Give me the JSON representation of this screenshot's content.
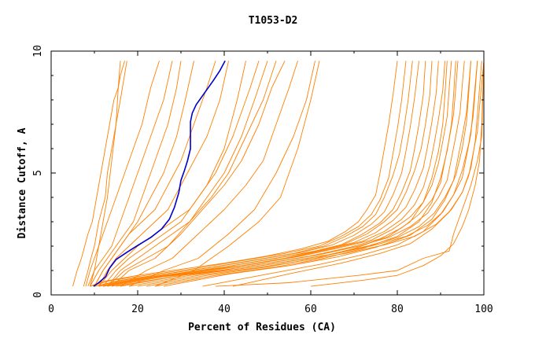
{
  "chart_data": {
    "type": "line",
    "title": "T1053-D2",
    "xlabel": "Percent of Residues (CA)",
    "ylabel": "Distance Cutoff, A",
    "xlim": [
      0,
      100
    ],
    "ylim": [
      0,
      10
    ],
    "x_ticks": [
      0,
      20,
      40,
      60,
      80,
      100
    ],
    "y_ticks": [
      0,
      5,
      10
    ],
    "grid": false,
    "colors": {
      "highlight": "#0000cc",
      "others": "#ff8000"
    },
    "series": [
      {
        "highlight": true,
        "x": [
          9.8,
          11.0,
          12.6,
          13.5,
          15.0,
          17.5,
          20.2,
          23.0,
          25.5,
          27.3,
          28.5,
          29.5,
          30.0,
          30.8,
          31.5,
          32.2,
          32.2,
          32.6,
          33.5,
          35.5,
          37.5,
          39.0,
          40.2
        ],
        "y": [
          0.35,
          0.5,
          0.75,
          1.1,
          1.45,
          1.75,
          2.05,
          2.35,
          2.7,
          3.1,
          3.6,
          4.2,
          4.7,
          5.1,
          5.5,
          6.0,
          7.1,
          7.45,
          7.8,
          8.3,
          8.8,
          9.2,
          9.6
        ]
      },
      {
        "x": [
          5.0,
          6.0,
          7.0,
          8.5,
          9.5,
          10.5,
          11.5,
          12.5,
          13.5,
          14.5,
          15.5,
          16.0,
          17.0
        ],
        "y": [
          0.35,
          1.0,
          1.5,
          2.5,
          3.0,
          4.0,
          5.0,
          6.0,
          7.0,
          8.0,
          8.5,
          9.0,
          9.6
        ]
      },
      {
        "x": [
          7.5,
          8.5,
          9.2,
          10.0,
          11.0,
          12.5,
          13.0,
          14.0,
          15.0,
          16.0,
          17.5
        ],
        "y": [
          0.35,
          1.0,
          1.5,
          2.0,
          3.0,
          4.0,
          5.0,
          6.0,
          7.0,
          8.0,
          9.6
        ]
      },
      {
        "x": [
          8.0,
          9.0,
          10.0,
          11.0,
          12.0,
          13.0,
          14.0,
          15.0,
          15.5,
          16.0
        ],
        "y": [
          0.35,
          1.0,
          1.5,
          2.0,
          3.0,
          4.0,
          5.5,
          7.0,
          8.5,
          9.6
        ]
      },
      {
        "x": [
          9.0,
          10.0,
          11.0,
          13.0,
          15.0,
          17.0,
          19.0,
          21.0,
          23.0,
          25.0
        ],
        "y": [
          0.35,
          1.0,
          2.0,
          3.0,
          4.0,
          5.0,
          6.0,
          7.0,
          8.5,
          9.6
        ]
      },
      {
        "x": [
          8.5,
          10.0,
          12.0,
          14.0,
          16.0,
          18.0,
          20.0,
          22.0,
          24.0,
          26.0,
          28.0
        ],
        "y": [
          0.35,
          1.0,
          1.5,
          2.0,
          3.0,
          4.0,
          5.0,
          6.0,
          7.0,
          8.0,
          9.6
        ]
      },
      {
        "x": [
          9.0,
          11.0,
          13.0,
          15.0,
          17.0,
          19.0,
          21.0,
          23.0,
          25.0,
          27.0,
          29.0,
          30.0
        ],
        "y": [
          0.35,
          1.0,
          1.5,
          2.0,
          2.5,
          3.0,
          4.0,
          5.0,
          6.0,
          7.0,
          8.5,
          9.6
        ]
      },
      {
        "x": [
          10.0,
          12.0,
          14.0,
          16.0,
          18.0,
          20.0,
          23.0,
          26.0,
          29.0,
          31.0,
          33.0
        ],
        "y": [
          0.35,
          1.0,
          1.5,
          2.0,
          2.5,
          3.0,
          4.0,
          5.0,
          6.5,
          8.0,
          9.6
        ]
      },
      {
        "x": [
          10.0,
          12.0,
          14.0,
          16.0,
          18.0,
          21.0,
          24.0,
          27.0,
          30.0,
          33.0,
          36.0,
          38.0
        ],
        "y": [
          0.35,
          1.0,
          1.5,
          2.0,
          2.5,
          3.0,
          3.5,
          4.5,
          5.5,
          7.0,
          8.5,
          9.6
        ]
      },
      {
        "x": [
          11.0,
          13.0,
          15.0,
          18.0,
          21.0,
          24.0,
          27.0,
          30.0,
          33.0,
          36.0,
          39.0,
          41.0
        ],
        "y": [
          0.35,
          1.0,
          1.5,
          2.0,
          2.5,
          3.0,
          3.5,
          4.5,
          5.5,
          6.5,
          8.0,
          9.6
        ]
      },
      {
        "x": [
          11.0,
          14.0,
          17.0,
          20.0,
          24.0,
          28.0,
          32.0,
          36.0,
          40.0,
          43.0,
          45.0
        ],
        "y": [
          0.35,
          1.0,
          1.5,
          2.0,
          2.5,
          3.0,
          3.5,
          4.5,
          6.0,
          8.0,
          9.6
        ]
      },
      {
        "x": [
          12.0,
          15.0,
          18.0,
          22.0,
          26.0,
          30.0,
          34.0,
          38.0,
          42.0,
          46.0,
          48.0
        ],
        "y": [
          0.35,
          1.0,
          1.5,
          2.0,
          2.5,
          3.0,
          4.0,
          5.0,
          6.5,
          8.5,
          9.6
        ]
      },
      {
        "x": [
          13.0,
          16.0,
          20.0,
          24.0,
          28.0,
          32.0,
          36.0,
          40.0,
          44.0,
          47.0,
          50.0
        ],
        "y": [
          0.35,
          1.0,
          1.5,
          2.0,
          2.5,
          3.0,
          4.0,
          5.0,
          6.5,
          8.0,
          9.6
        ]
      },
      {
        "x": [
          13.0,
          17.0,
          22.0,
          27.0,
          32.0,
          37.0,
          41.0,
          45.0,
          49.0,
          52.0
        ],
        "y": [
          0.35,
          1.0,
          1.5,
          2.0,
          3.0,
          4.0,
          5.0,
          6.5,
          8.0,
          9.6
        ]
      },
      {
        "x": [
          14.0,
          18.0,
          24.0,
          30.0,
          35.0,
          40.0,
          44.0,
          48.0,
          51.0,
          54.0
        ],
        "y": [
          0.35,
          1.0,
          1.5,
          2.5,
          3.5,
          4.5,
          5.5,
          7.0,
          8.5,
          9.6
        ]
      },
      {
        "x": [
          16.0,
          22.0,
          28.0,
          34.0,
          40.0,
          45.0,
          49.0,
          52.0,
          55.0,
          57.0
        ],
        "y": [
          0.35,
          1.0,
          1.5,
          2.5,
          3.5,
          4.5,
          5.5,
          7.0,
          8.5,
          9.6
        ]
      },
      {
        "x": [
          18.0,
          26.0,
          34.0,
          41.0,
          47.0,
          52.0,
          56.0,
          59.0,
          61.0
        ],
        "y": [
          0.35,
          1.0,
          1.5,
          2.5,
          3.5,
          5.0,
          6.5,
          8.0,
          9.6
        ]
      },
      {
        "x": [
          24.0,
          33.0,
          41.0,
          48.0,
          53.0,
          57.0,
          60.0,
          62.0
        ],
        "y": [
          0.35,
          1.0,
          2.0,
          3.0,
          4.0,
          6.0,
          8.0,
          9.6
        ]
      },
      {
        "x": [
          9.0,
          12.0,
          20.0,
          30.0,
          40.0,
          50.0,
          58.0,
          64.0,
          68.0,
          71.0,
          73.0,
          75.0,
          76.0,
          77.0,
          78.0,
          79.0,
          80.0
        ],
        "y": [
          0.35,
          0.55,
          0.8,
          1.05,
          1.3,
          1.6,
          1.9,
          2.2,
          2.6,
          3.0,
          3.5,
          4.1,
          5.0,
          6.0,
          7.0,
          8.2,
          9.6
        ]
      },
      {
        "x": [
          9.0,
          14.0,
          24.0,
          34.0,
          44.0,
          54.0,
          62.0,
          67.0,
          71.0,
          74.0,
          76.0,
          78.0,
          79.0,
          80.0,
          81.0,
          82.0
        ],
        "y": [
          0.35,
          0.6,
          0.85,
          1.1,
          1.4,
          1.7,
          2.0,
          2.4,
          2.8,
          3.3,
          3.9,
          4.8,
          5.8,
          6.8,
          8.0,
          9.6
        ]
      },
      {
        "x": [
          10.0,
          16.0,
          26.0,
          36.0,
          46.0,
          56.0,
          63.0,
          68.0,
          72.0,
          75.0,
          77.0,
          79.0,
          80.5,
          81.5,
          82.5,
          83.5
        ],
        "y": [
          0.35,
          0.6,
          0.85,
          1.1,
          1.4,
          1.7,
          2.0,
          2.4,
          2.8,
          3.3,
          4.0,
          4.9,
          5.8,
          6.8,
          8.0,
          9.6
        ]
      },
      {
        "x": [
          10.0,
          18.0,
          28.0,
          38.0,
          48.0,
          58.0,
          65.0,
          70.0,
          74.0,
          77.0,
          79.0,
          81.0,
          82.0,
          83.0,
          84.0,
          85.0
        ],
        "y": [
          0.35,
          0.65,
          0.9,
          1.15,
          1.45,
          1.75,
          2.05,
          2.45,
          2.9,
          3.4,
          4.1,
          5.0,
          5.9,
          6.9,
          8.1,
          9.6
        ]
      },
      {
        "x": [
          11.0,
          19.0,
          30.0,
          40.0,
          50.0,
          60.0,
          67.0,
          72.0,
          76.0,
          79.0,
          81.0,
          83.0,
          84.0,
          85.0,
          86.0,
          86.5
        ],
        "y": [
          0.35,
          0.65,
          0.9,
          1.15,
          1.45,
          1.75,
          2.05,
          2.5,
          2.95,
          3.5,
          4.2,
          5.1,
          6.0,
          7.0,
          8.2,
          9.6
        ]
      },
      {
        "x": [
          11.0,
          20.0,
          31.0,
          42.0,
          52.0,
          61.0,
          68.0,
          73.0,
          77.0,
          80.0,
          82.0,
          84.0,
          85.5,
          86.5,
          87.5,
          88.0
        ],
        "y": [
          0.35,
          0.65,
          0.9,
          1.2,
          1.5,
          1.8,
          2.1,
          2.5,
          3.0,
          3.5,
          4.2,
          5.1,
          6.0,
          7.0,
          8.2,
          9.6
        ]
      },
      {
        "x": [
          12.0,
          22.0,
          33.0,
          44.0,
          54.0,
          63.0,
          70.0,
          75.0,
          79.0,
          82.0,
          84.0,
          86.0,
          87.0,
          88.0,
          89.0,
          89.5
        ],
        "y": [
          0.35,
          0.7,
          0.95,
          1.2,
          1.5,
          1.85,
          2.15,
          2.55,
          3.05,
          3.6,
          4.3,
          5.2,
          6.1,
          7.1,
          8.3,
          9.6
        ]
      },
      {
        "x": [
          12.0,
          23.0,
          35.0,
          46.0,
          56.0,
          65.0,
          72.0,
          77.0,
          81.0,
          84.0,
          86.0,
          87.5,
          88.5,
          89.5,
          90.5,
          91.0
        ],
        "y": [
          0.35,
          0.7,
          0.95,
          1.25,
          1.55,
          1.9,
          2.2,
          2.6,
          3.1,
          3.7,
          4.4,
          5.3,
          6.2,
          7.2,
          8.4,
          9.6
        ]
      },
      {
        "x": [
          13.0,
          25.0,
          37.0,
          48.0,
          58.0,
          67.0,
          74.0,
          79.0,
          83.0,
          86.0,
          88.0,
          89.5,
          90.5,
          91.5,
          92.0,
          92.5
        ],
        "y": [
          0.35,
          0.75,
          1.0,
          1.3,
          1.6,
          1.95,
          2.25,
          2.7,
          3.2,
          3.8,
          4.5,
          5.4,
          6.3,
          7.3,
          8.5,
          9.6
        ]
      },
      {
        "x": [
          14.0,
          26.0,
          39.0,
          50.0,
          60.0,
          69.0,
          76.0,
          81.0,
          85.0,
          88.0,
          90.0,
          91.0,
          92.0,
          93.0,
          93.5,
          94.0
        ],
        "y": [
          0.35,
          0.75,
          1.0,
          1.3,
          1.6,
          1.95,
          2.3,
          2.75,
          3.3,
          3.9,
          4.6,
          5.5,
          6.4,
          7.4,
          8.5,
          9.6
        ]
      },
      {
        "x": [
          15.0,
          28.0,
          41.0,
          52.0,
          62.0,
          71.0,
          78.0,
          83.0,
          87.0,
          89.5,
          91.5,
          92.5,
          93.5,
          94.5,
          95.0,
          95.5
        ],
        "y": [
          0.35,
          0.75,
          1.05,
          1.35,
          1.65,
          2.0,
          2.35,
          2.8,
          3.35,
          4.0,
          4.7,
          5.6,
          6.5,
          7.5,
          8.6,
          9.6
        ]
      },
      {
        "x": [
          16.0,
          30.0,
          43.0,
          54.0,
          64.0,
          73.0,
          80.0,
          85.0,
          88.5,
          91.0,
          93.0,
          94.0,
          95.0,
          96.0,
          96.5,
          97.0
        ],
        "y": [
          0.35,
          0.8,
          1.05,
          1.35,
          1.65,
          2.0,
          2.35,
          2.8,
          3.35,
          4.0,
          4.7,
          5.6,
          6.5,
          7.5,
          8.6,
          9.6
        ]
      },
      {
        "x": [
          18.0,
          32.0,
          45.0,
          56.0,
          66.0,
          75.0,
          82.0,
          87.0,
          90.5,
          93.0,
          95.0,
          96.0,
          97.0,
          97.5,
          98.0,
          98.5
        ],
        "y": [
          0.35,
          0.8,
          1.1,
          1.4,
          1.7,
          2.05,
          2.4,
          2.85,
          3.4,
          4.1,
          4.8,
          5.7,
          6.6,
          7.6,
          8.6,
          9.6
        ]
      },
      {
        "x": [
          20.0,
          34.0,
          47.0,
          58.0,
          68.0,
          77.0,
          84.0,
          89.0,
          92.5,
          95.0,
          96.5,
          97.5,
          98.5,
          99.0,
          99.5,
          100.0
        ],
        "y": [
          0.35,
          0.8,
          1.1,
          1.4,
          1.7,
          2.05,
          2.4,
          2.9,
          3.5,
          4.2,
          4.9,
          5.8,
          6.7,
          7.7,
          8.7,
          9.6
        ]
      },
      {
        "x": [
          22.0,
          36.0,
          50.0,
          61.0,
          70.0,
          78.0,
          83.0,
          86.0,
          88.0,
          89.5,
          90.5,
          91.0,
          91.5
        ],
        "y": [
          0.35,
          0.8,
          1.15,
          1.5,
          1.9,
          2.4,
          3.0,
          3.8,
          4.8,
          5.9,
          7.0,
          8.2,
          9.6
        ]
      },
      {
        "x": [
          24.0,
          38.0,
          52.0,
          63.0,
          72.0,
          80.0,
          85.0,
          88.0,
          90.0,
          91.5,
          92.5,
          93.0,
          93.5
        ],
        "y": [
          0.35,
          0.8,
          1.15,
          1.5,
          1.9,
          2.4,
          3.0,
          3.8,
          4.8,
          5.9,
          7.0,
          8.2,
          9.6
        ]
      },
      {
        "x": [
          26.0,
          41.0,
          55.0,
          66.0,
          75.0,
          83.0,
          88.0,
          91.0,
          93.5,
          95.0,
          96.0,
          96.5,
          97.0
        ],
        "y": [
          0.35,
          0.85,
          1.2,
          1.55,
          1.95,
          2.45,
          3.1,
          3.9,
          4.9,
          6.0,
          7.1,
          8.3,
          9.6
        ]
      },
      {
        "x": [
          35.0,
          50.0,
          62.0,
          72.0,
          80.0,
          86.0,
          90.0,
          93.0,
          95.0,
          96.5,
          97.5,
          98.0,
          98.5
        ],
        "y": [
          0.35,
          0.85,
          1.25,
          1.65,
          2.05,
          2.6,
          3.3,
          4.1,
          5.1,
          6.2,
          7.3,
          8.4,
          9.6
        ]
      },
      {
        "x": [
          42.0,
          56.0,
          67.0,
          76.0,
          83.0,
          88.0,
          92.0,
          95.0,
          97.0,
          98.0,
          98.5,
          99.0,
          99.5
        ],
        "y": [
          0.35,
          0.9,
          1.3,
          1.7,
          2.1,
          2.7,
          3.4,
          4.2,
          5.2,
          6.3,
          7.4,
          8.5,
          9.6
        ]
      },
      {
        "x": [
          38.0,
          55.0,
          71.0,
          80.0,
          86.0,
          92.0,
          93.0,
          95.0,
          97.0,
          98.5,
          99.5,
          100.0
        ],
        "y": [
          0.35,
          0.5,
          0.8,
          1.0,
          1.5,
          1.8,
          2.5,
          3.5,
          4.5,
          5.5,
          6.5,
          9.6
        ]
      },
      {
        "x": [
          60.0,
          72.0,
          80.0,
          86.0,
          90.0,
          93.0,
          95.0,
          96.5,
          98.0,
          99.0,
          99.5,
          100.0
        ],
        "y": [
          0.35,
          0.6,
          0.8,
          1.2,
          1.6,
          2.1,
          2.8,
          3.5,
          4.5,
          5.5,
          7.0,
          9.6
        ]
      }
    ]
  }
}
